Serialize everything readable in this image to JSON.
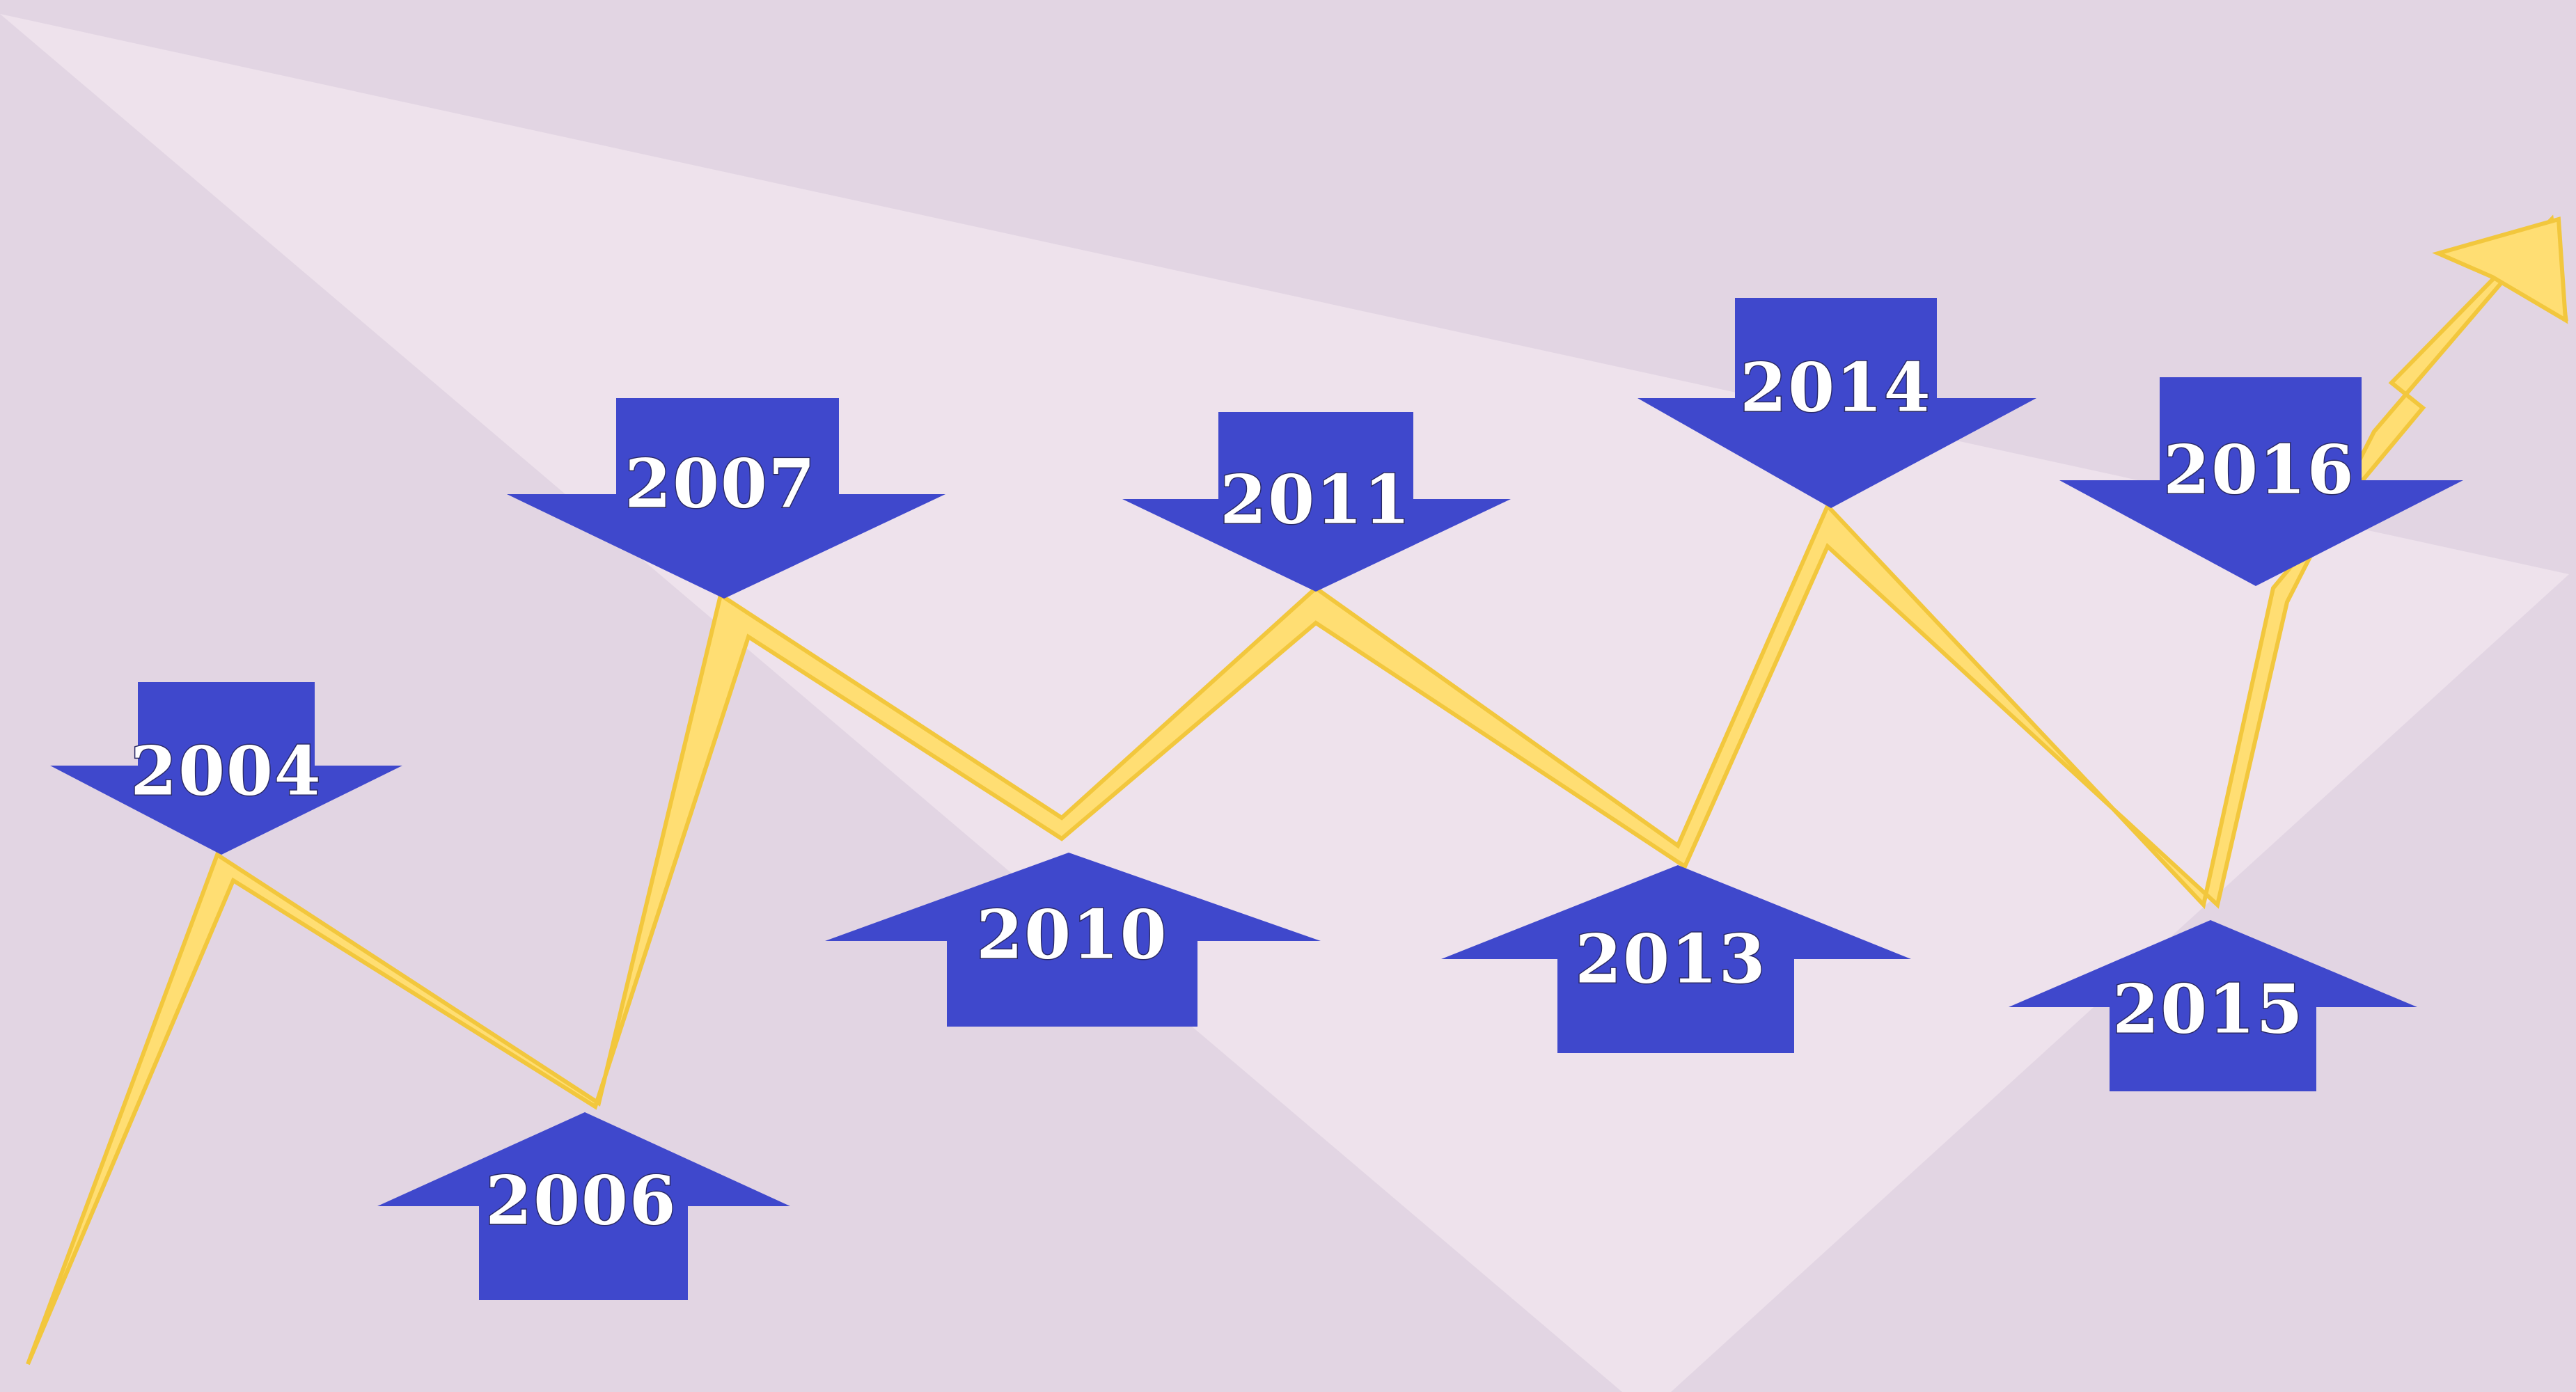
{
  "colors": {
    "background": "#e2d5e3",
    "spotlight": "#eee2ec",
    "trend_fill": "#ffde73",
    "trend_edge": "#f2c73d",
    "marker_fill": "#3f48cc",
    "label_text": "#ffffff"
  },
  "markers": [
    {
      "year": "2004",
      "direction": "down"
    },
    {
      "year": "2006",
      "direction": "up"
    },
    {
      "year": "2007",
      "direction": "down"
    },
    {
      "year": "2010",
      "direction": "up"
    },
    {
      "year": "2011",
      "direction": "down"
    },
    {
      "year": "2013",
      "direction": "up"
    },
    {
      "year": "2014",
      "direction": "down"
    },
    {
      "year": "2015",
      "direction": "up"
    },
    {
      "year": "2016",
      "direction": "down"
    }
  ]
}
